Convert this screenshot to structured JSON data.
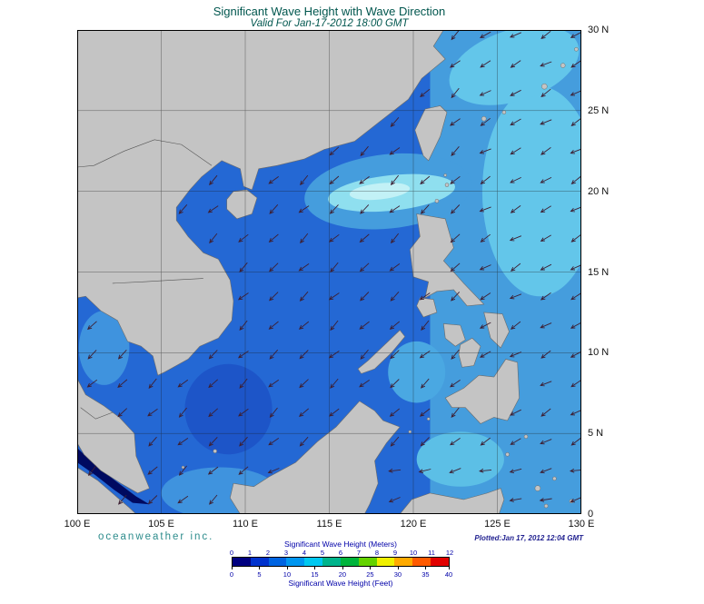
{
  "header": {
    "title": "Significant Wave Height with Wave Direction",
    "subtitle": "Valid For Jan-17-2012 18:00 GMT"
  },
  "footer": {
    "brand": "oceanweather inc.",
    "plotted": "Plotted:Jan 17, 2012 12:04 GMT"
  },
  "axes": {
    "lat_ticks": [
      {
        "lat": 30,
        "label": "30 N"
      },
      {
        "lat": 25,
        "label": "25 N"
      },
      {
        "lat": 20,
        "label": "20 N"
      },
      {
        "lat": 15,
        "label": "15 N"
      },
      {
        "lat": 10,
        "label": "10 N"
      },
      {
        "lat": 5,
        "label": "5 N"
      },
      {
        "lat": 0,
        "label": "0"
      }
    ],
    "lon_ticks": [
      {
        "lon": 100,
        "label": "100 E"
      },
      {
        "lon": 105,
        "label": "105 E"
      },
      {
        "lon": 110,
        "label": "110 E"
      },
      {
        "lon": 115,
        "label": "115 E"
      },
      {
        "lon": 120,
        "label": "120 E"
      },
      {
        "lon": 125,
        "label": "125 E"
      },
      {
        "lon": 130,
        "label": "130 E"
      }
    ]
  },
  "legend": {
    "title_meters": "Significant Wave Height (Meters)",
    "title_feet": "Significant Wave Height (Feet)",
    "meters_ticks": [
      "0",
      "1",
      "2",
      "3",
      "4",
      "5",
      "6",
      "7",
      "8",
      "9",
      "10",
      "11",
      "12"
    ],
    "feet_ticks": [
      0,
      5,
      10,
      15,
      20,
      25,
      30,
      35,
      40
    ],
    "colors": [
      "#000080",
      "#0032cd",
      "#0064e1",
      "#0096f0",
      "#00c8f0",
      "#00b48c",
      "#00b43c",
      "#64d200",
      "#f0f000",
      "#ffaa00",
      "#ff5a00",
      "#e10000"
    ]
  },
  "chart_data": {
    "type": "heatmap",
    "title": "Significant Wave Height with Wave Direction",
    "valid_time": "Valid For Jan-17-2012 18:00 GMT",
    "lon_range": [
      100,
      130
    ],
    "lat_range": [
      0,
      30
    ],
    "colorbar_meters": [
      0,
      1,
      2,
      3,
      4,
      5,
      6,
      7,
      8,
      9,
      10,
      11,
      12
    ],
    "colorbar_feet": [
      0,
      5,
      10,
      15,
      20,
      25,
      30,
      35,
      40
    ],
    "units": [
      "Meters",
      "Feet"
    ],
    "legend_position": "bottom"
  },
  "map": {
    "extent": {
      "lon_min": 100,
      "lon_max": 130,
      "lat_min": 0,
      "lat_max": 30,
      "grid_step": 5
    },
    "colors": {
      "sea_base": "#2468d4",
      "land": "#c4c4c4",
      "land_stroke": "#6b6b6b",
      "grid": "#1a1a1a",
      "border": "#000000",
      "arrow": "#3d1f33",
      "country_border": "#555555"
    },
    "sea_patches": [
      {
        "shape": "rect",
        "x": [
          121,
          130
        ],
        "y": [
          0,
          30
        ],
        "color": "#459ddd"
      },
      {
        "shape": "ellipse",
        "c": [
          127.5,
          20
        ],
        "r": [
          3.4,
          6.5
        ],
        "rot": 0,
        "color": "#63c6ea"
      },
      {
        "shape": "ellipse",
        "c": [
          126,
          27.8
        ],
        "r": [
          4,
          2.2
        ],
        "rot": -18,
        "color": "#63c6ea"
      },
      {
        "shape": "ellipse",
        "c": [
          109,
          6.5
        ],
        "r": [
          2.6,
          2.8
        ],
        "rot": 0,
        "color": "#1d55c8"
      },
      {
        "shape": "ellipse",
        "c": [
          118.5,
          20
        ],
        "r": [
          5,
          2.3
        ],
        "rot": -6,
        "color": "#459ddd"
      },
      {
        "shape": "ellipse",
        "c": [
          118.7,
          19.9
        ],
        "r": [
          3.8,
          1.1
        ],
        "rot": -6,
        "color": "#8fdfef"
      },
      {
        "shape": "ellipse",
        "c": [
          118.0,
          20.0
        ],
        "r": [
          1.8,
          0.5
        ],
        "rot": -6,
        "color": "#c2f1f6"
      },
      {
        "shape": "ellipse",
        "c": [
          101.6,
          10.3
        ],
        "r": [
          1.5,
          2.3
        ],
        "rot": 0,
        "color": "#3f93de"
      },
      {
        "shape": "ellipse",
        "c": [
          108.5,
          1.3
        ],
        "r": [
          3.5,
          1.6
        ],
        "rot": 0,
        "color": "#3f93de"
      },
      {
        "shape": "ellipse",
        "c": [
          120.2,
          8.8
        ],
        "r": [
          1.7,
          1.9
        ],
        "rot": 0,
        "color": "#4aa8e2"
      },
      {
        "shape": "ellipse",
        "c": [
          122.8,
          3.4
        ],
        "r": [
          2.6,
          1.7
        ],
        "rot": 0,
        "color": "#5cbfe6"
      },
      {
        "shape": "polygon",
        "points": [
          [
            100,
            4.1
          ],
          [
            100.6,
            3.5
          ],
          [
            101.6,
            2.6
          ],
          [
            102.6,
            1.8
          ],
          [
            103.5,
            1.1
          ],
          [
            104.3,
            0.6
          ],
          [
            103.3,
            0.7
          ],
          [
            102.2,
            1.5
          ],
          [
            101.1,
            2.4
          ],
          [
            100,
            3.2
          ]
        ],
        "color": "#000a60"
      }
    ],
    "land": [
      {
        "name": "asia-mainland",
        "points": [
          [
            100,
            30
          ],
          [
            121.8,
            30
          ],
          [
            121.2,
            29.0
          ],
          [
            121.9,
            28.2
          ],
          [
            120.5,
            27.0
          ],
          [
            119.7,
            25.7
          ],
          [
            118.1,
            24.4
          ],
          [
            116.5,
            23.1
          ],
          [
            114.7,
            22.6
          ],
          [
            113.5,
            22.0
          ],
          [
            111.9,
            21.6
          ],
          [
            110.8,
            21.4
          ],
          [
            110.4,
            20.1
          ],
          [
            109.9,
            20.3
          ],
          [
            109.7,
            21.4
          ],
          [
            108.6,
            21.9
          ],
          [
            107.4,
            20.9
          ],
          [
            106.7,
            20.1
          ],
          [
            105.9,
            19.0
          ],
          [
            105.9,
            18.2
          ],
          [
            106.6,
            17.2
          ],
          [
            107.5,
            16.2
          ],
          [
            108.4,
            15.8
          ],
          [
            109.1,
            14.5
          ],
          [
            109.3,
            13.2
          ],
          [
            109.2,
            12.0
          ],
          [
            108.4,
            10.9
          ],
          [
            107.3,
            10.4
          ],
          [
            106.6,
            9.6
          ],
          [
            105.2,
            8.8
          ],
          [
            104.8,
            8.6
          ],
          [
            104.5,
            9.8
          ],
          [
            103.8,
            10.4
          ],
          [
            103.0,
            10.7
          ],
          [
            102.4,
            12.0
          ],
          [
            101.4,
            12.6
          ],
          [
            100.5,
            13.5
          ],
          [
            100.0,
            13.4
          ],
          [
            100.0,
            8.4
          ],
          [
            100.5,
            7.4
          ],
          [
            101.6,
            6.7
          ],
          [
            102.5,
            6.0
          ],
          [
            103.4,
            5.0
          ],
          [
            103.5,
            3.6
          ],
          [
            104.3,
            1.6
          ],
          [
            103.6,
            1.3
          ],
          [
            102.6,
            1.9
          ],
          [
            101.4,
            2.7
          ],
          [
            100.4,
            3.7
          ],
          [
            100.0,
            4.4
          ]
        ]
      },
      {
        "name": "sumatra",
        "points": [
          [
            100,
            2.9
          ],
          [
            101.2,
            2.1
          ],
          [
            102.2,
            1.2
          ],
          [
            103.1,
            0.4
          ],
          [
            103.5,
            0
          ],
          [
            100,
            0
          ]
        ]
      },
      {
        "name": "borneo",
        "points": [
          [
            109.1,
            1.0
          ],
          [
            109.3,
            1.9
          ],
          [
            110.5,
            1.7
          ],
          [
            111.4,
            2.3
          ],
          [
            113.0,
            3.2
          ],
          [
            114.3,
            4.5
          ],
          [
            115.4,
            5.4
          ],
          [
            116.8,
            7.0
          ],
          [
            117.7,
            6.4
          ],
          [
            118.2,
            5.8
          ],
          [
            119.2,
            5.4
          ],
          [
            118.4,
            4.4
          ],
          [
            117.7,
            3.3
          ],
          [
            117.9,
            1.9
          ],
          [
            117.4,
            0.6
          ],
          [
            117.1,
            0
          ],
          [
            109.7,
            0
          ]
        ]
      },
      {
        "name": "taiwan",
        "points": [
          [
            120.1,
            23.8
          ],
          [
            120.7,
            25.1
          ],
          [
            121.6,
            25.3
          ],
          [
            122.0,
            24.9
          ],
          [
            121.6,
            23.4
          ],
          [
            120.9,
            21.9
          ],
          [
            120.6,
            22.2
          ]
        ]
      },
      {
        "name": "hainan",
        "points": [
          [
            108.9,
            19.5
          ],
          [
            109.3,
            20.0
          ],
          [
            110.1,
            20.1
          ],
          [
            110.7,
            19.6
          ],
          [
            110.4,
            18.6
          ],
          [
            109.5,
            18.3
          ],
          [
            108.9,
            18.9
          ]
        ]
      },
      {
        "name": "luzon",
        "points": [
          [
            120.2,
            18.6
          ],
          [
            121.9,
            18.3
          ],
          [
            122.4,
            16.5
          ],
          [
            121.8,
            15.7
          ],
          [
            123.0,
            14.3
          ],
          [
            124.2,
            13.0
          ],
          [
            123.2,
            12.9
          ],
          [
            122.4,
            13.9
          ],
          [
            121.4,
            13.8
          ],
          [
            120.7,
            13.4
          ],
          [
            120.9,
            14.4
          ],
          [
            120.0,
            14.7
          ],
          [
            119.8,
            16.4
          ],
          [
            120.4,
            17.2
          ]
        ]
      },
      {
        "name": "mindoro",
        "points": [
          [
            120.4,
            13.4
          ],
          [
            121.2,
            13.3
          ],
          [
            121.4,
            12.5
          ],
          [
            120.6,
            12.2
          ],
          [
            120.2,
            12.9
          ]
        ]
      },
      {
        "name": "palawan",
        "points": [
          [
            116.9,
            8.7
          ],
          [
            117.7,
            9.0
          ],
          [
            118.7,
            10.0
          ],
          [
            119.5,
            11.0
          ],
          [
            119.2,
            11.4
          ],
          [
            118.3,
            10.5
          ],
          [
            117.3,
            9.5
          ],
          [
            116.7,
            9.0
          ]
        ]
      },
      {
        "name": "panay",
        "points": [
          [
            121.8,
            11.8
          ],
          [
            122.8,
            11.7
          ],
          [
            123.1,
            10.8
          ],
          [
            122.5,
            10.4
          ],
          [
            121.9,
            10.9
          ]
        ]
      },
      {
        "name": "negros-cebu",
        "points": [
          [
            122.8,
            10.5
          ],
          [
            123.5,
            10.9
          ],
          [
            124.0,
            10.4
          ],
          [
            123.6,
            9.2
          ],
          [
            122.9,
            9.1
          ],
          [
            122.7,
            9.9
          ]
        ]
      },
      {
        "name": "samar-leyte",
        "points": [
          [
            124.2,
            12.5
          ],
          [
            125.3,
            12.4
          ],
          [
            125.7,
            11.3
          ],
          [
            125.2,
            10.3
          ],
          [
            124.6,
            10.9
          ],
          [
            124.4,
            11.7
          ]
        ]
      },
      {
        "name": "mindanao",
        "points": [
          [
            121.9,
            7.2
          ],
          [
            123.0,
            7.8
          ],
          [
            123.9,
            8.6
          ],
          [
            124.8,
            8.5
          ],
          [
            125.5,
            9.6
          ],
          [
            126.2,
            9.4
          ],
          [
            126.3,
            7.2
          ],
          [
            125.6,
            5.8
          ],
          [
            124.8,
            6.0
          ],
          [
            124.0,
            5.6
          ],
          [
            123.1,
            6.6
          ],
          [
            122.3,
            6.6
          ]
        ]
      },
      {
        "name": "sulawesi",
        "points": [
          [
            119.2,
            0
          ],
          [
            119.9,
            0.9
          ],
          [
            121.0,
            1.3
          ],
          [
            123.0,
            0.9
          ],
          [
            124.4,
            1.3
          ],
          [
            125.2,
            1.6
          ],
          [
            125.4,
            0.9
          ],
          [
            125.1,
            0
          ]
        ]
      }
    ],
    "islets": [
      [
        121.4,
        19.4,
        2
      ],
      [
        122.0,
        20.4,
        2
      ],
      [
        121.9,
        21.0,
        1.5
      ],
      [
        124.2,
        24.5,
        2.5
      ],
      [
        125.4,
        24.9,
        2
      ],
      [
        127.8,
        26.5,
        3
      ],
      [
        128.9,
        27.8,
        2.5
      ],
      [
        129.7,
        28.8,
        2
      ],
      [
        108.2,
        3.9,
        2
      ],
      [
        106.3,
        2.9,
        1.5
      ],
      [
        125.6,
        3.7,
        2
      ],
      [
        126.7,
        4.8,
        2
      ],
      [
        127.4,
        1.6,
        3
      ],
      [
        128.4,
        2.2,
        2
      ],
      [
        127.9,
        0.5,
        2
      ],
      [
        129.4,
        0.8,
        2
      ],
      [
        119.8,
        5.1,
        1.5
      ],
      [
        120.9,
        5.9,
        1.5
      ]
    ],
    "borders": [
      [
        [
          108.0,
          21.6
        ],
        [
          106.2,
          22.9
        ],
        [
          104.6,
          23.2
        ],
        [
          102.8,
          22.5
        ],
        [
          101.0,
          21.6
        ],
        [
          100.0,
          21.5
        ]
      ],
      [
        [
          102.1,
          14.3
        ],
        [
          104.0,
          14.4
        ],
        [
          105.6,
          14.5
        ],
        [
          107.5,
          14.6
        ]
      ],
      [
        [
          100.2,
          6.6
        ],
        [
          101.1,
          5.9
        ],
        [
          102.1,
          6.3
        ]
      ]
    ],
    "arrows": {
      "spacing_deg": 1.8,
      "offset_deg": 0.9,
      "base_angle": 137,
      "east_angle": 150,
      "equator_angle": 166,
      "jitter": 9,
      "color": "#3d1f33"
    }
  }
}
